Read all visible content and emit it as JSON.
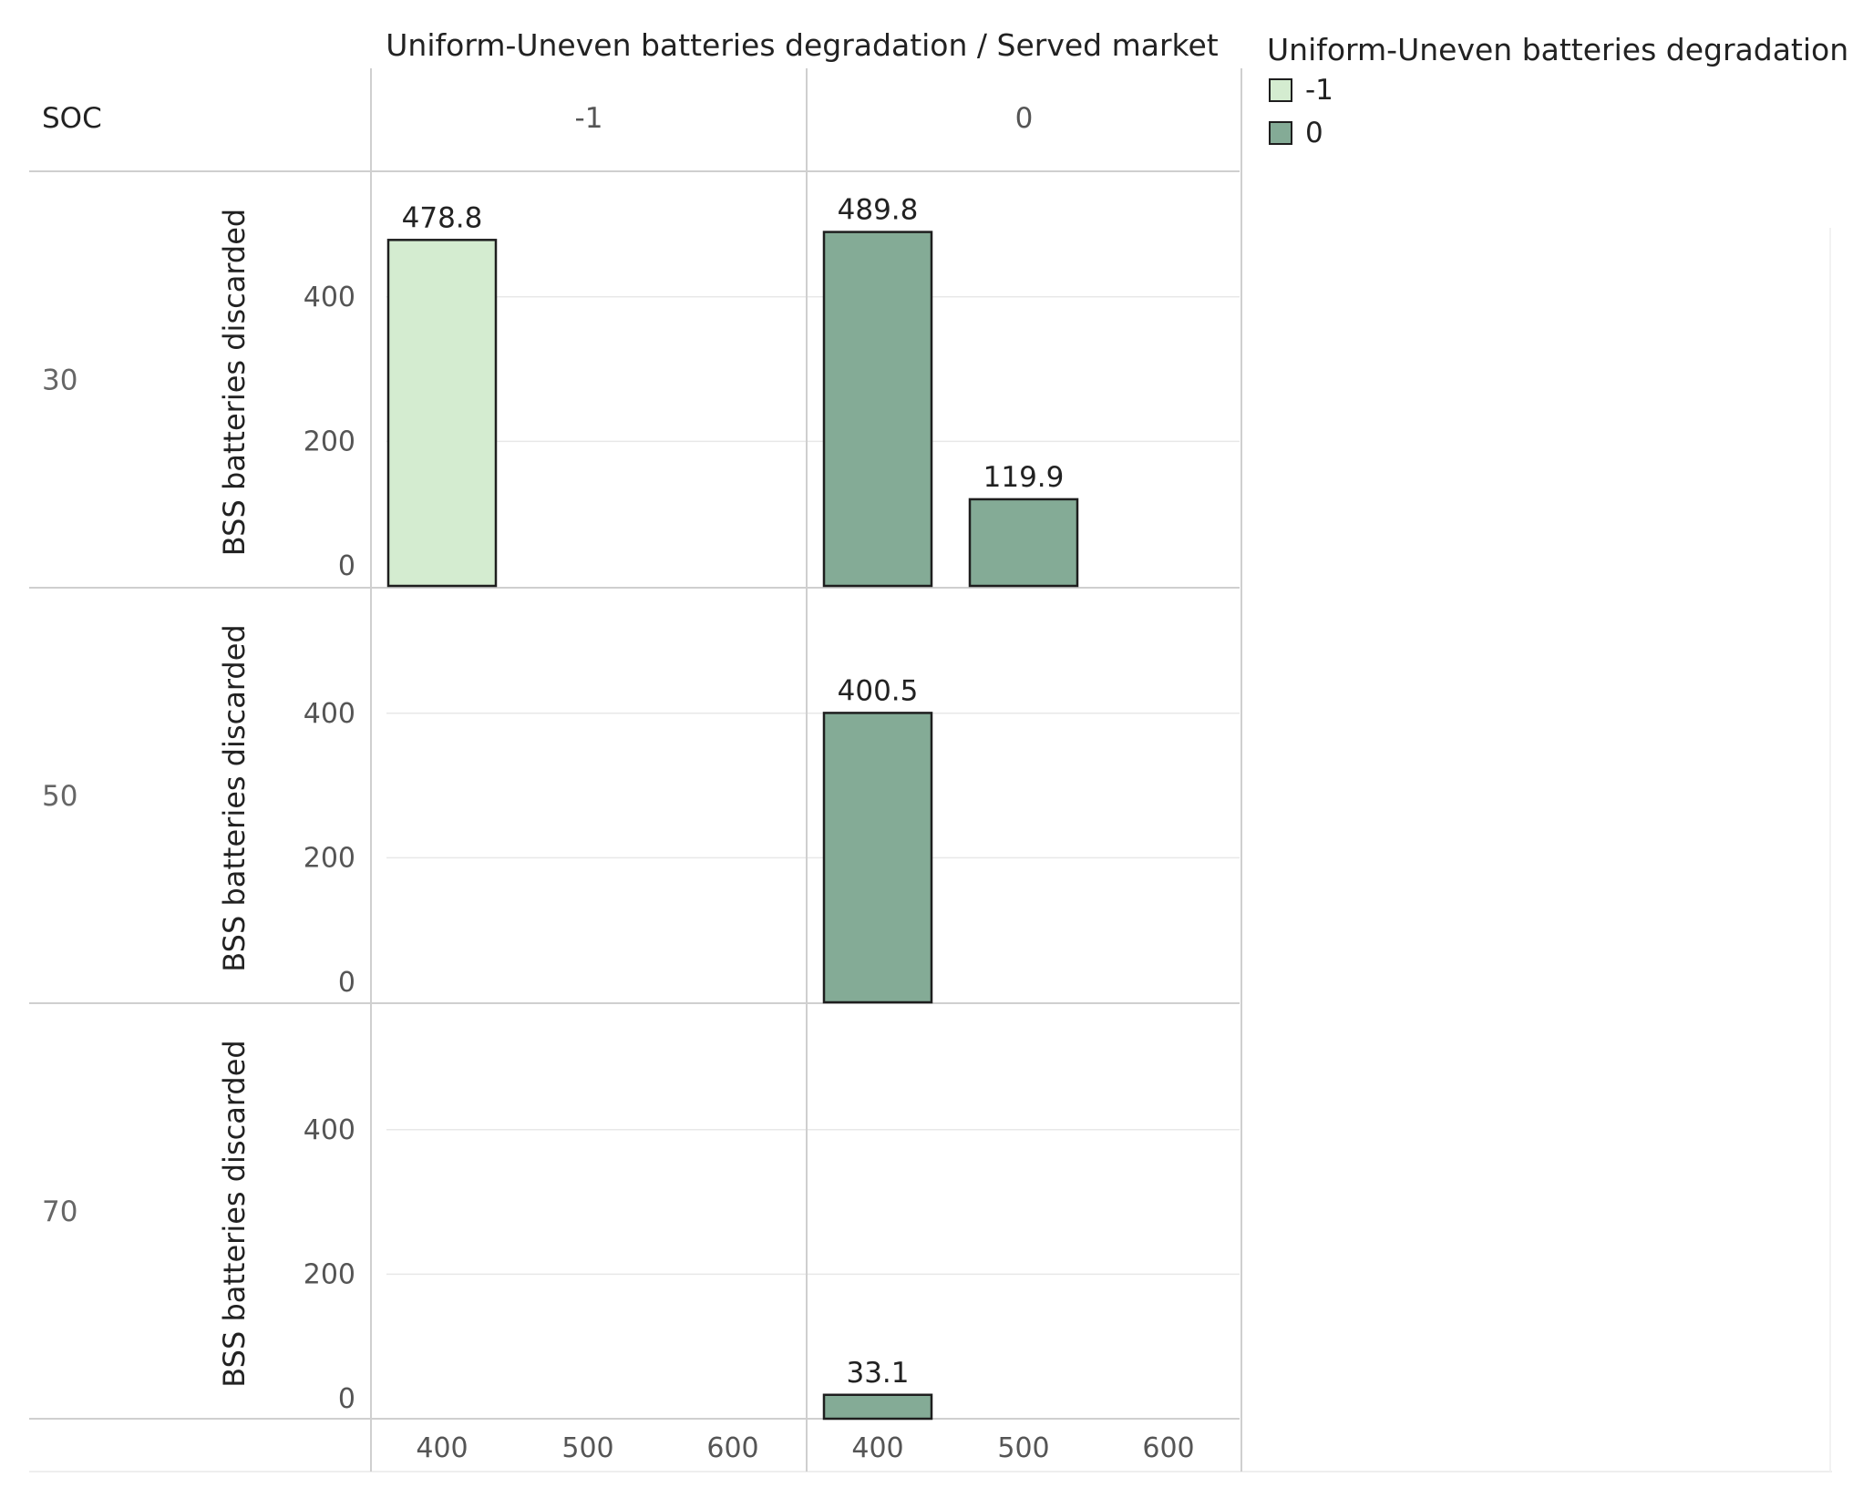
{
  "chart_data": {
    "type": "bar",
    "header_title": "Uniform-Uneven batteries degradation / Served market",
    "row_dimension_label": "SOC",
    "column_groups": [
      "-1",
      "0"
    ],
    "row_groups": [
      "30",
      "50",
      "70"
    ],
    "x_categories": [
      "400",
      "500",
      "600"
    ],
    "ylabel": "BSS batteries discarded",
    "ylim": [
      0,
      570
    ],
    "y_ticks": [
      0,
      200,
      400
    ],
    "legend": {
      "title": "Uniform-Uneven batteries degradation",
      "entries": [
        {
          "label": "-1",
          "color": "#d4ecd0"
        },
        {
          "label": "0",
          "color": "#84ab96"
        }
      ]
    },
    "bars": [
      {
        "soc": "30",
        "degradation": "-1",
        "market": "400",
        "value": 478.8,
        "label": "478.8"
      },
      {
        "soc": "30",
        "degradation": "0",
        "market": "400",
        "value": 489.8,
        "label": "489.8"
      },
      {
        "soc": "30",
        "degradation": "0",
        "market": "500",
        "value": 119.9,
        "label": "119.9"
      },
      {
        "soc": "50",
        "degradation": "0",
        "market": "400",
        "value": 400.5,
        "label": "400.5"
      },
      {
        "soc": "70",
        "degradation": "0",
        "market": "400",
        "value": 33.1,
        "label": "33.1"
      }
    ]
  },
  "colors": {
    "bar_outline": "#1e1e1e",
    "grid": "#e8e8e8",
    "divider": "#cfcfcf"
  }
}
